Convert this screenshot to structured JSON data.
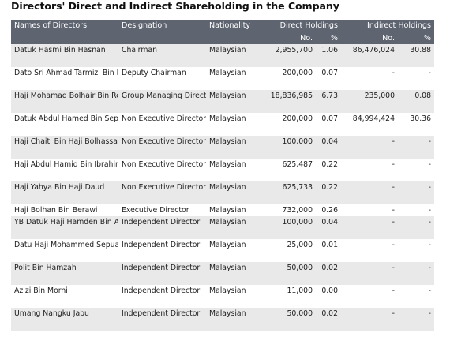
{
  "title": "Directors' Direct and Indirect Shareholding in the Company",
  "headers": {
    "name": "Names of Directors",
    "designation": "Designation",
    "nationality": "Nationality",
    "direct": "Direct Holdings",
    "indirect": "Indirect Holdings",
    "no": "No.",
    "pct": "%"
  },
  "rows": [
    {
      "name": "Datuk Hasmi Bin Hasnan",
      "designation": "Chairman",
      "nationality": "Malaysian",
      "direct_no": "2,955,700",
      "direct_pct": "1.06",
      "indirect_no": "86,476,024",
      "indirect_pct": "30.88"
    },
    {
      "name": "Dato Sri Ahmad Tarmizi Bin Haji Sulaiman",
      "designation": "Deputy Chairman",
      "nationality": "Malaysian",
      "direct_no": "200,000",
      "direct_pct": "0.07",
      "indirect_no": "-",
      "indirect_pct": "-"
    },
    {
      "name": "Haji Mohamad Bolhair Bin Reduan",
      "designation": "Group Managing Director",
      "nationality": "Malaysian",
      "direct_no": "18,836,985",
      "direct_pct": "6.73",
      "indirect_no": "235,000",
      "indirect_pct": "0.08"
    },
    {
      "name": "Datuk Abdul Hamed Bin Sepawi",
      "designation": "Non Executive Director",
      "nationality": "Malaysian",
      "direct_no": "200,000",
      "direct_pct": "0.07",
      "indirect_no": "84,994,424",
      "indirect_pct": "30.36"
    },
    {
      "name": "Haji Chaiti Bin Haji Bolhassan",
      "designation": "Non Executive Director",
      "nationality": "Malaysian",
      "direct_no": "100,000",
      "direct_pct": "0.04",
      "indirect_no": "-",
      "indirect_pct": "-"
    },
    {
      "name": "Haji Abdul Hamid Bin Ibrahim",
      "designation": "Non Executive Director",
      "nationality": "Malaysian",
      "direct_no": "625,487",
      "direct_pct": "0.22",
      "indirect_no": "-",
      "indirect_pct": "-"
    },
    {
      "name": "Haji Yahya Bin Haji Daud",
      "designation": "Non Executive Director",
      "nationality": "Malaysian",
      "direct_no": "625,733",
      "direct_pct": "0.22",
      "indirect_no": "-",
      "indirect_pct": "-"
    },
    {
      "name": "Haji Bolhan Bin Berawi",
      "designation": "Executive Director",
      "nationality": "Malaysian",
      "direct_no": "732,000",
      "direct_pct": "0.26",
      "indirect_no": "-",
      "indirect_pct": "-",
      "single": true
    },
    {
      "name": "YB Datuk Haji Hamden Bin Ahmad",
      "designation": "Independent Director",
      "nationality": "Malaysian",
      "direct_no": "100,000",
      "direct_pct": "0.04",
      "indirect_no": "-",
      "indirect_pct": "-"
    },
    {
      "name": "Datu Haji Mohammed Sepuan Bin Anu",
      "designation": "Independent Director",
      "nationality": "Malaysian",
      "direct_no": "25,000",
      "direct_pct": "0.01",
      "indirect_no": "-",
      "indirect_pct": "-"
    },
    {
      "name": "Polit Bin Hamzah",
      "designation": "Independent Director",
      "nationality": "Malaysian",
      "direct_no": "50,000",
      "direct_pct": "0.02",
      "indirect_no": "-",
      "indirect_pct": "-"
    },
    {
      "name": "Azizi Bin Morni",
      "designation": "Independent Director",
      "nationality": "Malaysian",
      "direct_no": "11,000",
      "direct_pct": "0.00",
      "indirect_no": "-",
      "indirect_pct": "-"
    },
    {
      "name": "Umang Nangku Jabu",
      "designation": "Independent Director",
      "nationality": "Malaysian",
      "direct_no": "50,000",
      "direct_pct": "0.02",
      "indirect_no": "-",
      "indirect_pct": "-"
    }
  ]
}
